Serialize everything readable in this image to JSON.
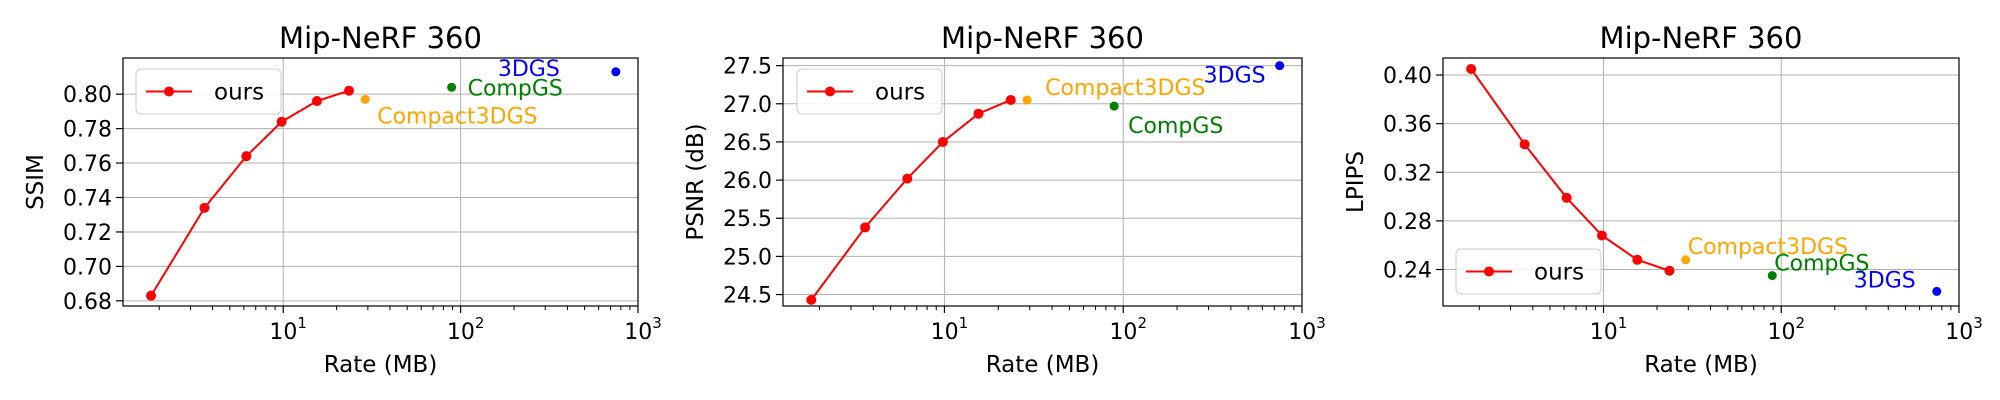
{
  "colors": {
    "ours": "#ff0000",
    "Compact3DGS": "#ffa500",
    "CompGS": "#008000",
    "3DGS": "#0000ff"
  },
  "chart_data": [
    {
      "type": "line",
      "title": "Mip-NeRF 360",
      "xlabel": "Rate (MB)",
      "ylabel": "SSIM",
      "xscale": "log",
      "xlim": [
        1.25,
        1000
      ],
      "ylim": [
        0.677,
        0.821
      ],
      "xticks": [
        {
          "value": 10,
          "label": "10",
          "exp": "1"
        },
        {
          "value": 100,
          "label": "10",
          "exp": "2"
        },
        {
          "value": 1000,
          "label": "10",
          "exp": "3"
        }
      ],
      "yticks": [
        0.68,
        0.7,
        0.72,
        0.74,
        0.76,
        0.78,
        0.8
      ],
      "ytick_labels": [
        "0.68",
        "0.70",
        "0.72",
        "0.74",
        "0.76",
        "0.78",
        "0.80"
      ],
      "legend": {
        "label": "ours",
        "loc": "upper left"
      },
      "series": [
        {
          "name": "ours",
          "x": [
            1.8,
            3.6,
            6.2,
            9.8,
            15.5,
            23.5
          ],
          "y": [
            0.683,
            0.734,
            0.764,
            0.784,
            0.796,
            0.802
          ]
        }
      ],
      "points": [
        {
          "name": "Compact3DGS",
          "x": 29,
          "y": 0.797,
          "label": "Compact3DGS"
        },
        {
          "name": "CompGS",
          "x": 89,
          "y": 0.804,
          "label": "CompGS"
        },
        {
          "name": "3DGS",
          "x": 750,
          "y": 0.813,
          "label": "3DGS"
        }
      ]
    },
    {
      "type": "line",
      "title": "Mip-NeRF 360",
      "xlabel": "Rate (MB)",
      "ylabel": "PSNR (dB)",
      "xscale": "log",
      "xlim": [
        1.25,
        1000
      ],
      "ylim": [
        24.35,
        27.6
      ],
      "xticks": [
        {
          "value": 10,
          "label": "10",
          "exp": "1"
        },
        {
          "value": 100,
          "label": "10",
          "exp": "2"
        },
        {
          "value": 1000,
          "label": "10",
          "exp": "3"
        }
      ],
      "yticks": [
        24.5,
        25.0,
        25.5,
        26.0,
        26.5,
        27.0,
        27.5
      ],
      "ytick_labels": [
        "24.5",
        "25.0",
        "25.5",
        "26.0",
        "26.5",
        "27.0",
        "27.5"
      ],
      "legend": {
        "label": "ours",
        "loc": "upper left"
      },
      "series": [
        {
          "name": "ours",
          "x": [
            1.8,
            3.6,
            6.2,
            9.8,
            15.5,
            23.5
          ],
          "y": [
            24.43,
            25.38,
            26.02,
            26.5,
            26.87,
            27.05
          ]
        }
      ],
      "points": [
        {
          "name": "Compact3DGS",
          "x": 29,
          "y": 27.05,
          "label": "Compact3DGS"
        },
        {
          "name": "CompGS",
          "x": 89,
          "y": 26.97,
          "label": "CompGS"
        },
        {
          "name": "3DGS",
          "x": 750,
          "y": 27.5,
          "label": "3DGS"
        }
      ]
    },
    {
      "type": "line",
      "title": "Mip-NeRF 360",
      "xlabel": "Rate (MB)",
      "ylabel": "LPIPS",
      "xscale": "log",
      "xlim": [
        1.25,
        1000
      ],
      "ylim": [
        0.21,
        0.414
      ],
      "xticks": [
        {
          "value": 10,
          "label": "10",
          "exp": "1"
        },
        {
          "value": 100,
          "label": "10",
          "exp": "2"
        },
        {
          "value": 1000,
          "label": "10",
          "exp": "3"
        }
      ],
      "yticks": [
        0.24,
        0.28,
        0.32,
        0.36,
        0.4
      ],
      "ytick_labels": [
        "0.24",
        "0.28",
        "0.32",
        "0.36",
        "0.40"
      ],
      "legend": {
        "label": "ours",
        "loc": "lower left"
      },
      "series": [
        {
          "name": "ours",
          "x": [
            1.8,
            3.6,
            6.2,
            9.8,
            15.5,
            23.5
          ],
          "y": [
            0.405,
            0.343,
            0.299,
            0.268,
            0.248,
            0.239
          ]
        }
      ],
      "points": [
        {
          "name": "Compact3DGS",
          "x": 29,
          "y": 0.248,
          "label": "Compact3DGS"
        },
        {
          "name": "CompGS",
          "x": 89,
          "y": 0.235,
          "label": "CompGS"
        },
        {
          "name": "3DGS",
          "x": 750,
          "y": 0.222,
          "label": "3DGS"
        }
      ]
    }
  ]
}
